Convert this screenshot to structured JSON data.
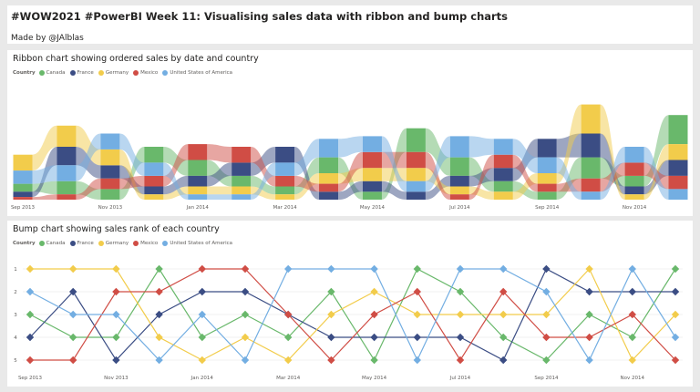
{
  "header": {
    "title": "#WOW2021 #PowerBI Week 11: Visualising sales data with ribbon and bump charts",
    "subtitle": "Made by @JAlblas"
  },
  "legend": {
    "title": "Country",
    "items": [
      {
        "name": "Canada",
        "color": "#69b86b"
      },
      {
        "name": "France",
        "color": "#3b4d84"
      },
      {
        "name": "Germany",
        "color": "#f2cc4b"
      },
      {
        "name": "Mexico",
        "color": "#d04d45"
      },
      {
        "name": "United States of America",
        "color": "#73aee2"
      }
    ]
  },
  "chart_data": [
    {
      "type": "area",
      "subtype": "ribbon",
      "title": "Ribbon chart showing ordered sales by date and country",
      "x": [
        "Sep 2013",
        "Oct 2013",
        "Nov 2013",
        "Dec 2013",
        "Jan 2014",
        "Feb 2014",
        "Mar 2014",
        "Apr 2014",
        "May 2014",
        "Jun 2014",
        "Jul 2014",
        "Aug 2014",
        "Sep 2014",
        "Oct 2014",
        "Nov 2014",
        "Dec 2014"
      ],
      "tick_labels": [
        "Sep 2013",
        "Nov 2013",
        "Jan 2014",
        "Mar 2014",
        "May 2014",
        "Jul 2014",
        "Sep 2014",
        "Nov 2014"
      ],
      "series": [
        {
          "name": "Canada",
          "values": [
            3,
            5,
            4,
            6,
            6,
            4,
            3,
            6,
            3,
            9,
            7,
            4,
            3,
            8,
            4,
            11
          ]
        },
        {
          "name": "France",
          "values": [
            2,
            7,
            5,
            3,
            4,
            5,
            6,
            3,
            4,
            3,
            4,
            5,
            7,
            9,
            3,
            6
          ]
        },
        {
          "name": "Germany",
          "values": [
            6,
            8,
            6,
            2,
            3,
            3,
            2,
            4,
            5,
            5,
            3,
            3,
            4,
            11,
            2,
            6
          ]
        },
        {
          "name": "Mexico",
          "values": [
            1,
            2,
            4,
            4,
            6,
            6,
            4,
            3,
            6,
            6,
            2,
            5,
            3,
            5,
            5,
            5
          ]
        },
        {
          "name": "United States of America",
          "values": [
            5,
            6,
            6,
            5,
            2,
            2,
            5,
            7,
            6,
            4,
            8,
            6,
            6,
            3,
            6,
            4
          ]
        }
      ],
      "legend_position": "top-left",
      "grid": false
    },
    {
      "type": "line",
      "subtype": "bump",
      "title": "Bump chart showing sales rank of each country",
      "x": [
        "Sep 2013",
        "Oct 2013",
        "Nov 2013",
        "Dec 2013",
        "Jan 2014",
        "Feb 2014",
        "Mar 2014",
        "Apr 2014",
        "May 2014",
        "Jun 2014",
        "Jul 2014",
        "Aug 2014",
        "Sep 2014",
        "Oct 2014",
        "Nov 2014",
        "Dec 2014"
      ],
      "tick_labels": [
        "Sep 2013",
        "Nov 2013",
        "Jan 2014",
        "Mar 2014",
        "May 2014",
        "Jul 2014",
        "Sep 2014",
        "Nov 2014"
      ],
      "y_ticks": [
        "1",
        "2",
        "3",
        "4",
        "5"
      ],
      "ylim": [
        1,
        5
      ],
      "y_reversed": true,
      "series": [
        {
          "name": "Canada",
          "values": [
            3,
            4,
            4,
            1,
            4,
            3,
            4,
            2,
            5,
            1,
            2,
            4,
            5,
            3,
            4,
            1
          ]
        },
        {
          "name": "France",
          "values": [
            4,
            2,
            5,
            3,
            2,
            2,
            3,
            4,
            4,
            4,
            4,
            5,
            1,
            2,
            2,
            2
          ]
        },
        {
          "name": "Germany",
          "values": [
            1,
            1,
            1,
            4,
            5,
            4,
            5,
            3,
            2,
            3,
            3,
            3,
            3,
            1,
            5,
            3
          ]
        },
        {
          "name": "Mexico",
          "values": [
            5,
            5,
            2,
            2,
            1,
            1,
            3,
            5,
            3,
            2,
            5,
            2,
            4,
            4,
            3,
            5
          ]
        },
        {
          "name": "United States of America",
          "values": [
            2,
            3,
            3,
            5,
            3,
            5,
            1,
            1,
            1,
            5,
            1,
            1,
            2,
            5,
            1,
            4
          ]
        }
      ],
      "legend_position": "top-left",
      "grid": true
    }
  ]
}
